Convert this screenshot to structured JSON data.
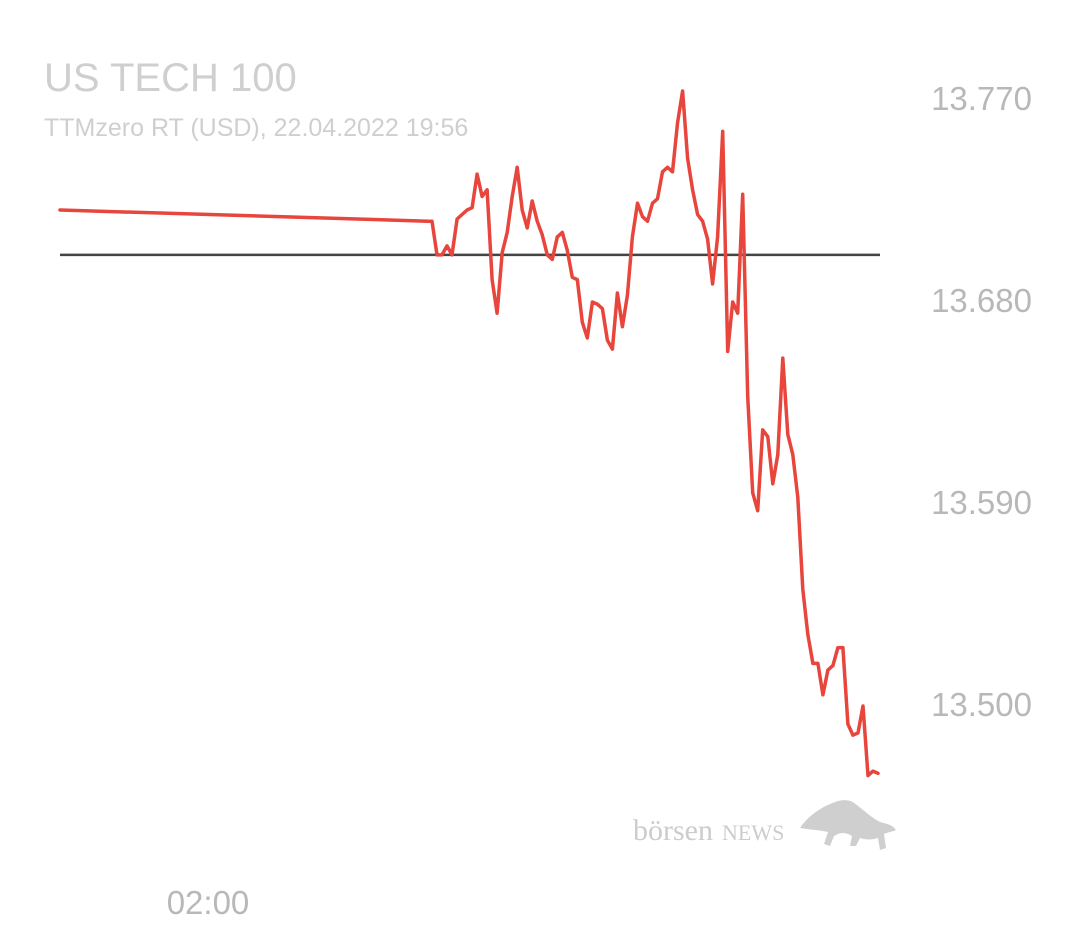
{
  "header": {
    "title": "US TECH 100",
    "subtitle": "TTMzero RT (USD), 22.04.2022 19:56"
  },
  "watermark": {
    "brand_lower": "börsen",
    "brand_upper": "NEWS"
  },
  "colors": {
    "line": "#e8453c",
    "reference_line": "#444444",
    "text": "#b8b8b8"
  },
  "chart_data": {
    "type": "line",
    "title": "US TECH 100",
    "subtitle": "TTMzero RT (USD), 22.04.2022 19:56",
    "xlabel": "",
    "ylabel": "",
    "x_ticks": [
      "02:00"
    ],
    "y_ticks": [
      13770,
      13680,
      13590,
      13500
    ],
    "y_tick_labels": [
      "13.770",
      "13.680",
      "13.590",
      "13.500"
    ],
    "ylim": [
      13470,
      13785
    ],
    "reference_value": 13701,
    "grid": false,
    "series": [
      {
        "values": [
          13721,
          13716,
          13716,
          13701,
          13701,
          13705,
          13701,
          13717,
          13719,
          13721,
          13722,
          13737,
          13727,
          13730,
          13690,
          13675,
          13702,
          13711,
          13727,
          13740,
          13721,
          13713,
          13725,
          13716,
          13710,
          13701,
          13699,
          13709,
          13711,
          13703,
          13691,
          13690,
          13671,
          13664,
          13680,
          13679,
          13677,
          13663,
          13659,
          13684,
          13669,
          13683,
          13709,
          13724,
          13718,
          13716,
          13724,
          13726,
          13738,
          13740,
          13738,
          13760,
          13774,
          13744,
          13730,
          13719,
          13716,
          13708,
          13688,
          13709,
          13756,
          13658,
          13680,
          13675,
          13728,
          13638,
          13595,
          13587,
          13623,
          13620,
          13599,
          13612,
          13655,
          13621,
          13612,
          13593,
          13552,
          13532,
          13519,
          13519,
          13505,
          13516,
          13518,
          13526,
          13526,
          13492,
          13487,
          13488,
          13500,
          13469,
          13471,
          13470
        ]
      }
    ]
  }
}
